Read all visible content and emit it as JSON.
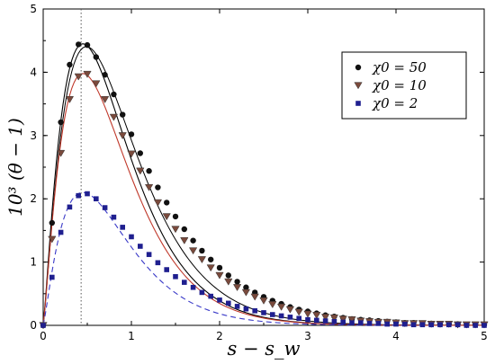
{
  "chart_data": {
    "type": "scatter",
    "title": "",
    "xlabel": "s − s_w",
    "ylabel": "10³ (θ − 1)",
    "xlim": [
      0,
      5
    ],
    "ylim": [
      0,
      5
    ],
    "xticks": [
      "0",
      "1",
      "2",
      "3",
      "4",
      "5"
    ],
    "yticks": [
      "0",
      "1",
      "2",
      "3",
      "4",
      "5"
    ],
    "grid": false,
    "legend_position": "top-right",
    "reference_line_x": 0.43,
    "series": [
      {
        "name": "χ₀ = 50",
        "legend_label": "χ0 = 50",
        "marker": "circle",
        "color": "#111111",
        "fit_color": "#000000",
        "fit_style": "solid",
        "amplitude": 4.45,
        "x": [
          0.0,
          0.1,
          0.2,
          0.3,
          0.4,
          0.5,
          0.6,
          0.7,
          0.8,
          0.9,
          1.0,
          1.1,
          1.2,
          1.3,
          1.4,
          1.5,
          1.6,
          1.7,
          1.8,
          1.9,
          2.0,
          2.1,
          2.2,
          2.3,
          2.4,
          2.5,
          2.6,
          2.7,
          2.8,
          2.9,
          3.0,
          3.1,
          3.2,
          3.3,
          3.4,
          3.5,
          3.6,
          3.7,
          3.8,
          3.9,
          4.0,
          4.1,
          4.2,
          4.3,
          4.4,
          4.5,
          4.6,
          4.7,
          4.8,
          4.9,
          5.0
        ],
        "y": [
          0.0,
          1.62,
          3.21,
          4.12,
          4.44,
          4.43,
          4.24,
          3.96,
          3.65,
          3.33,
          3.02,
          2.72,
          2.44,
          2.18,
          1.94,
          1.72,
          1.52,
          1.34,
          1.18,
          1.04,
          0.91,
          0.79,
          0.69,
          0.6,
          0.52,
          0.45,
          0.39,
          0.34,
          0.29,
          0.25,
          0.22,
          0.19,
          0.16,
          0.14,
          0.12,
          0.1,
          0.09,
          0.08,
          0.07,
          0.06,
          0.05,
          0.04,
          0.04,
          0.03,
          0.03,
          0.02,
          0.02,
          0.02,
          0.01,
          0.01,
          0.01
        ]
      },
      {
        "name": "χ₀ = 10",
        "legend_label": "χ0 = 10",
        "marker": "triangle-down",
        "color": "#7a4a3c",
        "fit_color": "#c0392b",
        "fit_style": "solid",
        "amplitude": 3.98,
        "x": [
          0.0,
          0.1,
          0.2,
          0.3,
          0.4,
          0.5,
          0.6,
          0.7,
          0.8,
          0.9,
          1.0,
          1.1,
          1.2,
          1.3,
          1.4,
          1.5,
          1.6,
          1.7,
          1.8,
          1.9,
          2.0,
          2.1,
          2.2,
          2.3,
          2.4,
          2.5,
          2.6,
          2.7,
          2.8,
          2.9,
          3.0,
          3.1,
          3.2,
          3.3,
          3.4,
          3.5,
          3.6,
          3.7,
          3.8,
          3.9,
          4.0,
          4.1,
          4.2,
          4.3,
          4.4,
          4.5,
          4.6,
          4.7,
          4.8,
          4.9,
          5.0
        ],
        "y": [
          0.0,
          1.36,
          2.72,
          3.57,
          3.93,
          3.97,
          3.82,
          3.57,
          3.29,
          3.0,
          2.71,
          2.44,
          2.18,
          1.94,
          1.72,
          1.52,
          1.34,
          1.18,
          1.04,
          0.91,
          0.79,
          0.69,
          0.6,
          0.52,
          0.45,
          0.39,
          0.33,
          0.29,
          0.25,
          0.21,
          0.18,
          0.16,
          0.13,
          0.12,
          0.1,
          0.09,
          0.07,
          0.06,
          0.05,
          0.05,
          0.04,
          0.03,
          0.03,
          0.03,
          0.02,
          0.02,
          0.02,
          0.01,
          0.01,
          0.01,
          0.01
        ]
      },
      {
        "name": "χ₀ = 2",
        "legend_label": "χ0 = 2",
        "marker": "square",
        "color": "#1f1f8f",
        "fit_color": "#3a3ac8",
        "fit_style": "dashed",
        "amplitude": 2.1,
        "x": [
          0.0,
          0.1,
          0.2,
          0.3,
          0.4,
          0.5,
          0.6,
          0.7,
          0.8,
          0.9,
          1.0,
          1.1,
          1.2,
          1.3,
          1.4,
          1.5,
          1.6,
          1.7,
          1.8,
          1.9,
          2.0,
          2.1,
          2.2,
          2.3,
          2.4,
          2.5,
          2.6,
          2.7,
          2.8,
          2.9,
          3.0,
          3.1,
          3.2,
          3.3,
          3.4,
          3.5,
          3.6,
          3.7,
          3.8,
          3.9,
          4.0,
          4.1,
          4.2,
          4.3,
          4.4,
          4.5,
          4.6,
          4.7,
          4.8,
          4.9,
          5.0
        ],
        "y": [
          0.0,
          0.76,
          1.47,
          1.87,
          2.05,
          2.08,
          2.0,
          1.86,
          1.71,
          1.55,
          1.4,
          1.25,
          1.12,
          0.99,
          0.88,
          0.77,
          0.68,
          0.6,
          0.52,
          0.46,
          0.4,
          0.35,
          0.3,
          0.26,
          0.23,
          0.2,
          0.17,
          0.15,
          0.13,
          0.11,
          0.09,
          0.08,
          0.07,
          0.06,
          0.05,
          0.04,
          0.04,
          0.03,
          0.03,
          0.02,
          0.02,
          0.02,
          0.01,
          0.01,
          0.01,
          0.01,
          0.01,
          0.01,
          0.0,
          0.0,
          0.0
        ]
      }
    ]
  }
}
